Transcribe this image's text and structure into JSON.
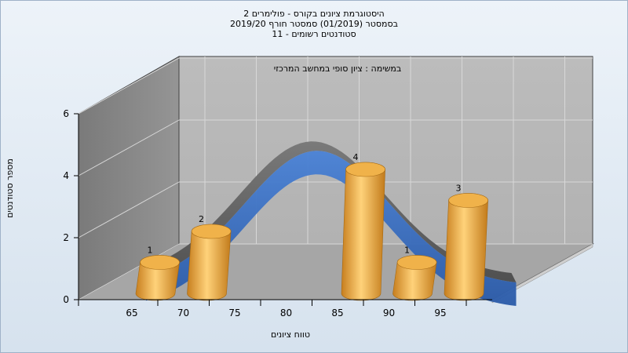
{
  "chart_data": {
    "type": "bar",
    "title_lines": [
      "היסטוגרמת ציונים בקורס - פולימרים 2",
      "בסמסטר  (01/2019)  סמסטר חורף 2019/20",
      "סטודנטים רשומים - 11"
    ],
    "subtitle": "במשימה : ציון סופי במחשב המרכזי",
    "xlabel": "טווח ציונים",
    "ylabel": "מספר סטודנטים",
    "categories": [
      "65",
      "70",
      "75",
      "80",
      "85",
      "90",
      "95"
    ],
    "values": [
      1,
      2,
      0,
      0,
      4,
      1,
      3
    ],
    "data_labels": [
      "1",
      "2",
      "",
      "",
      "4",
      "1",
      "3"
    ],
    "y_ticks": [
      "0",
      "2",
      "4",
      "6"
    ],
    "ylim": [
      0,
      6
    ],
    "grid": true,
    "style": "3d-cylinder-with-distribution-curve",
    "colors": {
      "bar": "#e8a33a",
      "bar_top": "#f0b24a",
      "curve_front": "#3a6fc0",
      "curve_back": "#707070",
      "back_wall": "#b8b8b8",
      "side_wall": "#8a8a8a",
      "floor": "#a8a8a8"
    }
  }
}
